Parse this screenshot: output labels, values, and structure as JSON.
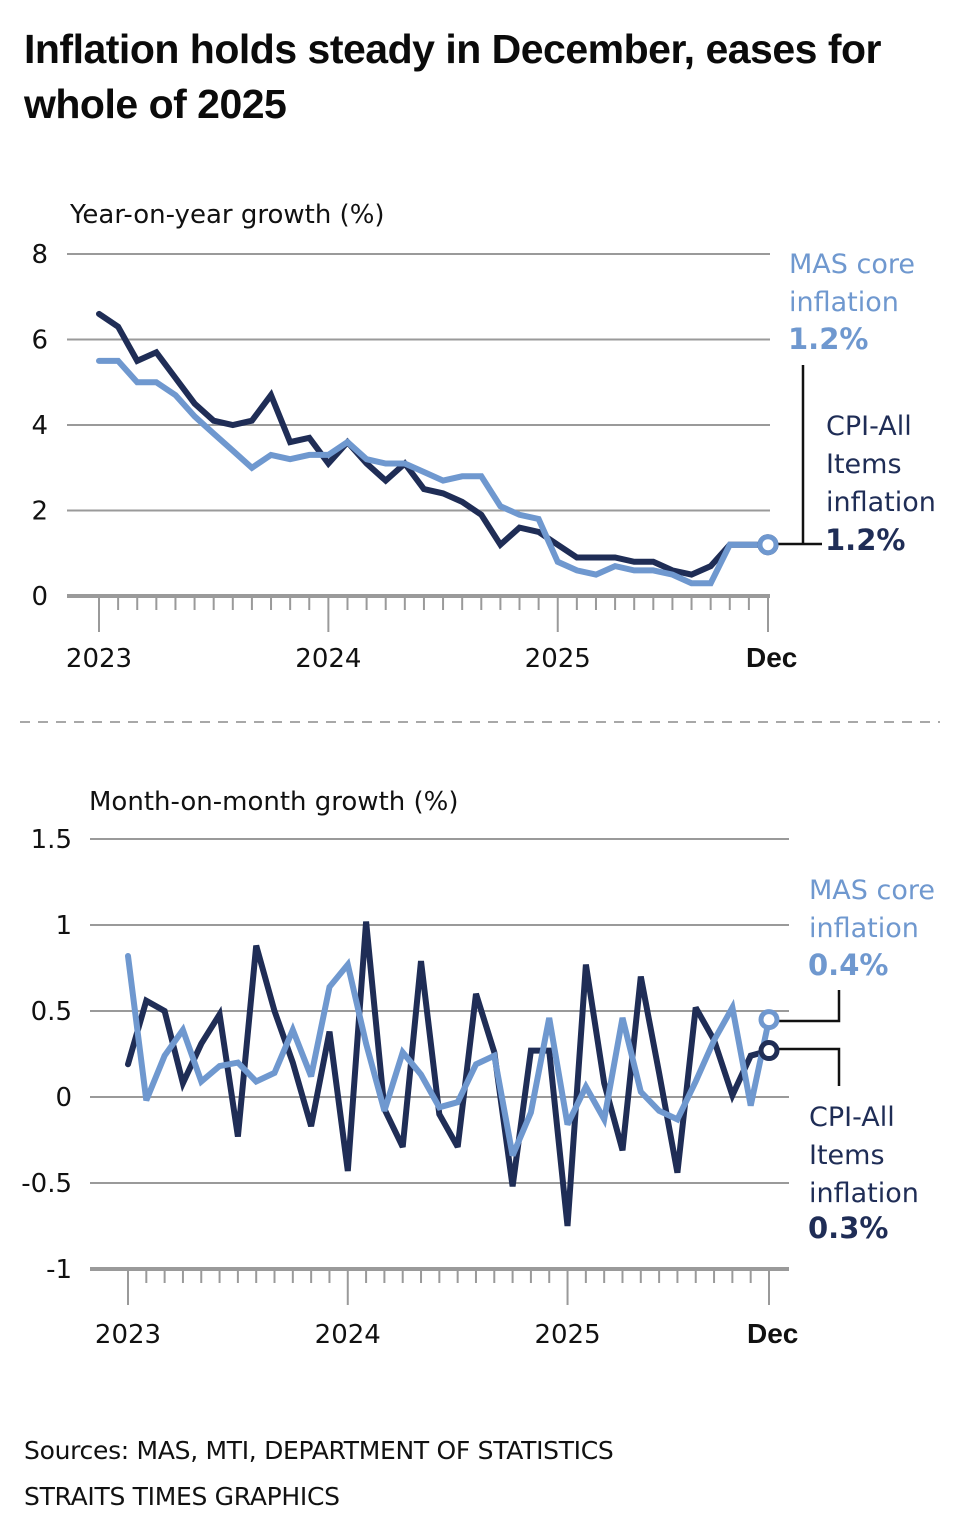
{
  "title": "Inflation holds steady in December, eases for whole of 2025",
  "colors": {
    "cpi": "#1f2d56",
    "core": "#6f98cf",
    "grid": "#9a9a9a",
    "axis": "#9a9a9a",
    "divider": "#a8a8a8",
    "connector": "#111111"
  },
  "chart_data": [
    {
      "type": "line",
      "title": "",
      "ylabel": "Year-on-year growth (%)",
      "xlabel": "",
      "ylim": [
        0,
        8
      ],
      "yticks": [
        "0",
        "2",
        "4",
        "6",
        "8"
      ],
      "ytick_values": [
        0,
        2,
        4,
        6,
        8
      ],
      "x_start": "2023-01",
      "x_end": "2025-12",
      "xtick_labels": [
        {
          "label": "2023",
          "month_index": 0,
          "bold": false
        },
        {
          "label": "2024",
          "month_index": 12,
          "bold": false
        },
        {
          "label": "2025",
          "month_index": 24,
          "bold": false
        },
        {
          "label": "Dec",
          "month_index": 35,
          "bold": true
        }
      ],
      "grid": true,
      "series": [
        {
          "name": "CPI-All Items inflation",
          "key": "cpi",
          "end_label": [
            "CPI-All",
            "Items",
            "inflation"
          ],
          "end_value": "1.2%",
          "values": [
            6.6,
            6.3,
            5.5,
            5.7,
            5.1,
            4.5,
            4.1,
            4.0,
            4.1,
            4.7,
            3.6,
            3.7,
            3.1,
            3.6,
            3.1,
            2.7,
            3.1,
            2.5,
            2.4,
            2.2,
            1.9,
            1.2,
            1.6,
            1.5,
            1.2,
            0.9,
            0.9,
            0.9,
            0.8,
            0.8,
            0.6,
            0.5,
            0.7,
            1.2,
            1.2,
            1.2
          ]
        },
        {
          "name": "MAS core inflation",
          "key": "core",
          "end_label": [
            "MAS core",
            "inflation"
          ],
          "end_value": "1.2%",
          "values": [
            5.5,
            5.5,
            5.0,
            5.0,
            4.7,
            4.2,
            3.8,
            3.4,
            3.0,
            3.3,
            3.2,
            3.3,
            3.3,
            3.6,
            3.2,
            3.1,
            3.1,
            2.9,
            2.7,
            2.8,
            2.8,
            2.1,
            1.9,
            1.8,
            0.8,
            0.6,
            0.5,
            0.7,
            0.6,
            0.6,
            0.5,
            0.3,
            0.3,
            1.2,
            1.2,
            1.2
          ]
        }
      ]
    },
    {
      "type": "line",
      "title": "",
      "ylabel": "Month-on-month growth (%)",
      "xlabel": "",
      "ylim": [
        -1,
        1.5
      ],
      "yticks": [
        "-1",
        "-0.5",
        "0",
        "0.5",
        "1",
        "1.5"
      ],
      "ytick_values": [
        -1,
        -0.5,
        0,
        0.5,
        1,
        1.5
      ],
      "x_start": "2023-01",
      "x_end": "2025-12",
      "xtick_labels": [
        {
          "label": "2023",
          "month_index": 0,
          "bold": false
        },
        {
          "label": "2024",
          "month_index": 12,
          "bold": false
        },
        {
          "label": "2025",
          "month_index": 24,
          "bold": false
        },
        {
          "label": "Dec",
          "month_index": 35,
          "bold": true
        }
      ],
      "grid": true,
      "series": [
        {
          "name": "CPI-All Items inflation",
          "key": "cpi",
          "end_label": [
            "CPI-All",
            "Items",
            "inflation"
          ],
          "end_value": "0.3%",
          "values": [
            0.19,
            0.56,
            0.5,
            0.08,
            0.31,
            0.48,
            -0.23,
            0.88,
            0.5,
            0.2,
            -0.17,
            0.38,
            -0.43,
            1.02,
            -0.07,
            -0.29,
            0.79,
            -0.1,
            -0.29,
            0.6,
            0.26,
            -0.52,
            0.27,
            0.27,
            -0.75,
            0.77,
            0.08,
            -0.31,
            0.7,
            0.14,
            -0.44,
            0.52,
            0.33,
            0.01,
            0.24,
            0.27
          ]
        },
        {
          "name": "MAS core inflation",
          "key": "core",
          "end_label": [
            "MAS core",
            "inflation"
          ],
          "end_value": "0.4%",
          "values": [
            0.82,
            -0.02,
            0.24,
            0.39,
            0.09,
            0.18,
            0.2,
            0.09,
            0.14,
            0.39,
            0.12,
            0.64,
            0.77,
            0.31,
            -0.08,
            0.26,
            0.13,
            -0.06,
            -0.03,
            0.19,
            0.24,
            -0.34,
            -0.09,
            0.46,
            -0.16,
            0.06,
            -0.13,
            0.46,
            0.03,
            -0.08,
            -0.13,
            0.09,
            0.33,
            0.52,
            -0.05,
            0.45
          ]
        }
      ]
    }
  ],
  "footer": {
    "sources": "Sources: MAS, MTI, DEPARTMENT OF STATISTICS",
    "credit": "STRAITS TIMES GRAPHICS"
  }
}
